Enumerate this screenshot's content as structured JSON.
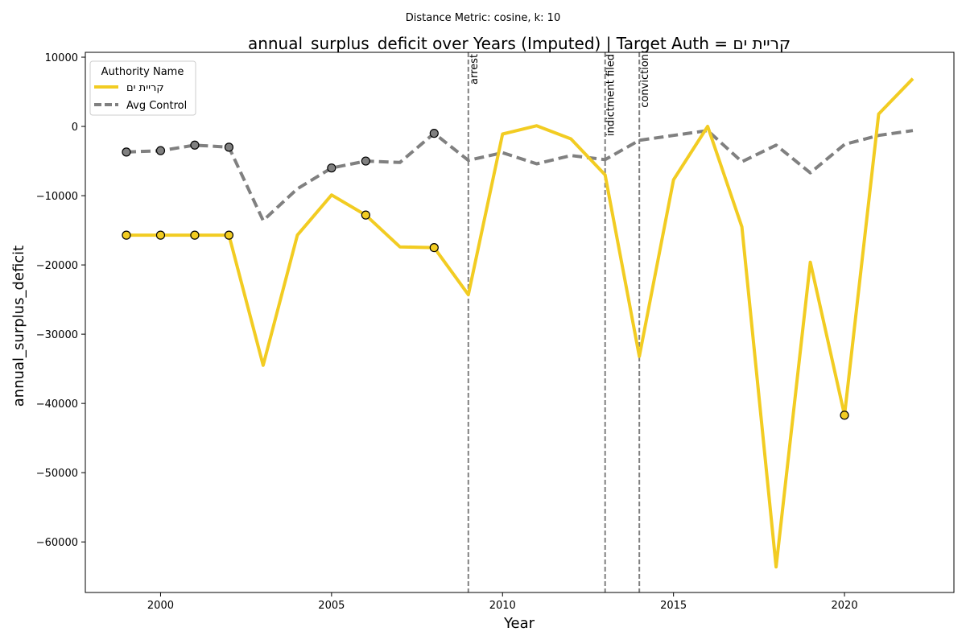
{
  "chart_data": {
    "type": "line",
    "suptitle": "Distance Metric: cosine, k: 10",
    "title": "annual_surplus_deficit over Years (Imputed) | Target Auth = קריית ים",
    "xlabel": "Year",
    "ylabel": "annual_surplus_deficit",
    "xlim": [
      1997.8,
      2023.2
    ],
    "ylim": [
      -67300,
      10700
    ],
    "x_ticks": [
      2000,
      2005,
      2010,
      2015,
      2020
    ],
    "y_ticks": [
      10000,
      0,
      -10000,
      -20000,
      -30000,
      -40000,
      -50000,
      -60000
    ],
    "y_tick_labels": [
      "10000",
      "0",
      "−10000",
      "−20000",
      "−30000",
      "−40000",
      "−50000",
      "−60000"
    ],
    "legend": {
      "title": "Authority Name",
      "position": "top-left"
    },
    "x": [
      1999,
      2000,
      2001,
      2002,
      2003,
      2004,
      2005,
      2006,
      2007,
      2008,
      2009,
      2010,
      2011,
      2012,
      2013,
      2014,
      2015,
      2016,
      2017,
      2018,
      2019,
      2020,
      2021,
      2022
    ],
    "series": [
      {
        "name": "קריית ים",
        "color": "#f2cc22",
        "dash": "solid",
        "values": [
          -15700,
          -15700,
          -15700,
          -15700,
          -34500,
          -15700,
          -9900,
          -12800,
          -17400,
          -17500,
          -24300,
          -1100,
          100,
          -1800,
          -7000,
          -33200,
          -7700,
          0,
          -14500,
          -63600,
          -19600,
          -41700,
          1800,
          6900
        ],
        "imputed_years": [
          1999,
          2000,
          2001,
          2002,
          2006,
          2008,
          2020
        ]
      },
      {
        "name": "Avg Control",
        "color": "#808080",
        "dash": "dashed",
        "values": [
          -3700,
          -3500,
          -2700,
          -3000,
          -13600,
          -9000,
          -6000,
          -5000,
          -5200,
          -1000,
          -4900,
          -3800,
          -5400,
          -4200,
          -4800,
          -2000,
          -1300,
          -600,
          -5100,
          -2700,
          -6700,
          -2600,
          -1300,
          -600
        ],
        "imputed_years": [
          1999,
          2000,
          2001,
          2002,
          2005,
          2006,
          2008
        ]
      }
    ],
    "events": [
      {
        "x": 2009,
        "label": "arrest"
      },
      {
        "x": 2013,
        "label": "indictment filed"
      },
      {
        "x": 2014,
        "label": "conviction"
      }
    ]
  }
}
